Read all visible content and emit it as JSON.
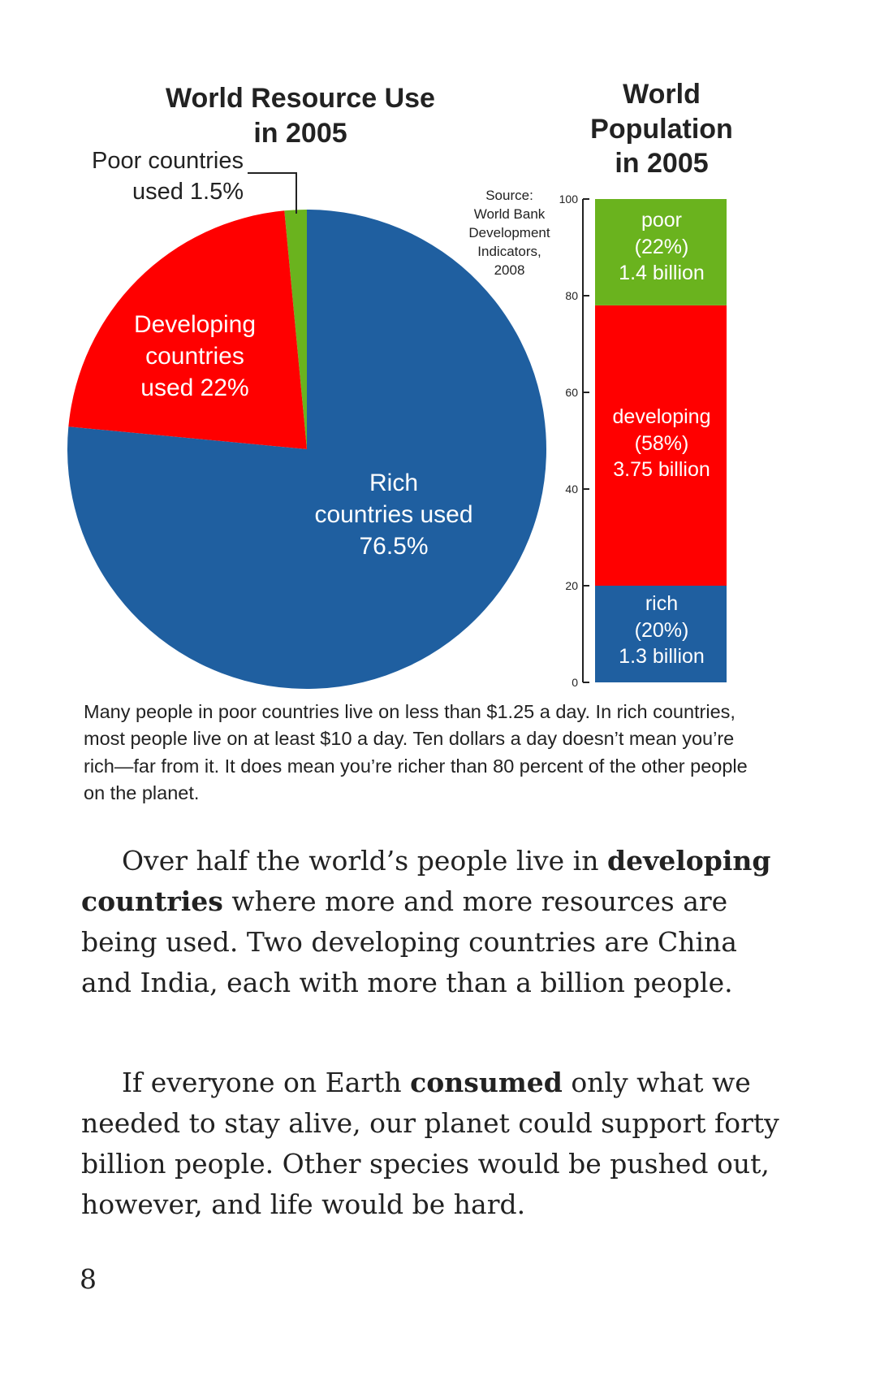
{
  "chart_data": [
    {
      "type": "pie",
      "title": "World Resource Use in 2005",
      "slices": [
        {
          "name": "Poor countries",
          "value": 1.5,
          "label": "Poor countries used 1.5%",
          "color": "#6ab31e"
        },
        {
          "name": "Developing countries",
          "value": 22,
          "label": "Developing countries used 22%",
          "color": "#ff0000"
        },
        {
          "name": "Rich countries",
          "value": 76.5,
          "label": "Rich countries used 76.5%",
          "color": "#1f5fa0"
        }
      ]
    },
    {
      "type": "bar",
      "stacked": true,
      "title": "World Population in 2005",
      "ylim": [
        0,
        100
      ],
      "yticks": [
        0,
        20,
        40,
        60,
        80,
        100
      ],
      "series": [
        {
          "name": "rich",
          "value": 20,
          "label": [
            "rich",
            "(20%)",
            "1.3 billion"
          ],
          "color": "#1f5fa0"
        },
        {
          "name": "developing",
          "value": 58,
          "label": [
            "developing",
            "(58%)",
            "3.75 billion"
          ],
          "color": "#ff0000"
        },
        {
          "name": "poor",
          "value": 22,
          "label": [
            "poor",
            "(22%)",
            "1.4 billion"
          ],
          "color": "#6ab31e"
        }
      ],
      "source": "Source: World Bank Development Indicators, 2008"
    }
  ],
  "titles": {
    "pie_line1": "World Resource Use",
    "pie_line2": "in 2005",
    "pop_line1": "World",
    "pop_line2": "Population",
    "pop_line3": "in 2005"
  },
  "labels": {
    "poor_line1": "Poor countries",
    "poor_line2": "used 1.5%",
    "dev_line1": "Developing",
    "dev_line2": "countries",
    "dev_line3": "used 22%",
    "rich_line1": "Rich",
    "rich_line2": "countries used",
    "rich_line3": "76.5%"
  },
  "source": {
    "line1": "Source:",
    "line2": "World Bank",
    "line3": "Development",
    "line4": "Indicators,",
    "line5": "2008"
  },
  "caption": "Many people in poor countries live on less than $1.25 a day. In rich countries, most people live on at least $10 a day. Ten dollars a day doesn’t mean you’re rich—far from it. It does mean you’re richer than 80 percent of the other people on the planet.",
  "paragraph1": {
    "before": "Over half the world’s people live in",
    "bold": "developing countries",
    "after": "where more and more resources are being used. Two developing countries are China and India, each with more than a billion people."
  },
  "paragraph2": {
    "before": "If everyone on Earth",
    "bold": "consumed",
    "after": "only what we needed to stay alive, our planet could support forty billion people. Other species would be pushed out, however, and life would be hard."
  },
  "page_number": "8"
}
